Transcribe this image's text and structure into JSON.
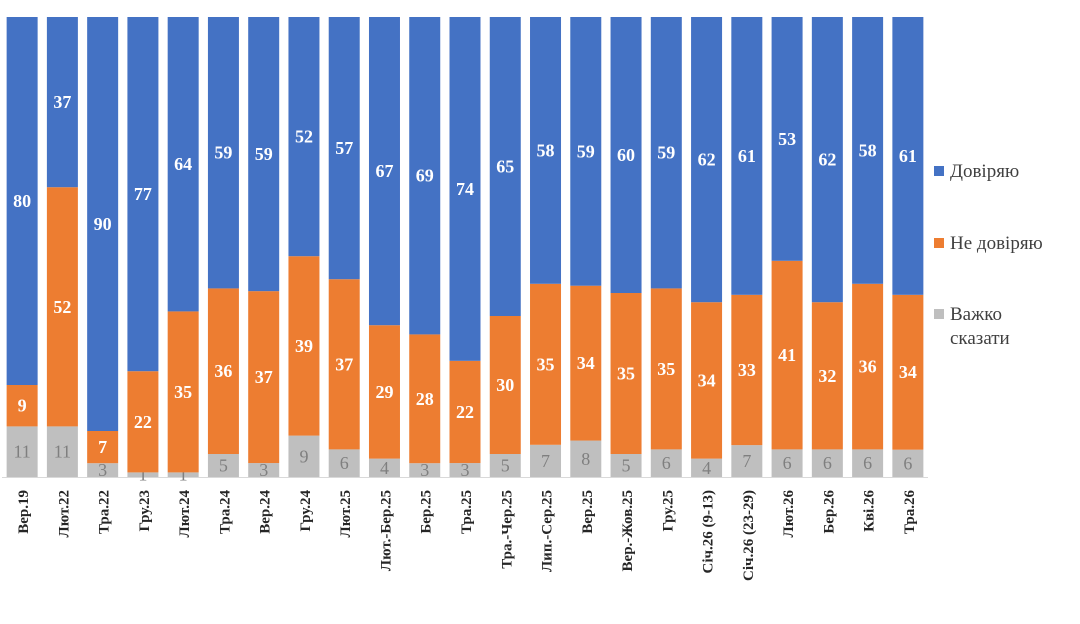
{
  "chart_data": {
    "type": "bar",
    "stacked": true,
    "normalized_percent": true,
    "categories": [
      "Вер.19",
      "Лют.22",
      "Тра.22",
      "Гру.23",
      "Лют.24",
      "Тра.24",
      "Вер.24",
      "Гру.24",
      "Лют.25",
      "Лют.-Бер.25",
      "Бер.25",
      "Тра.25",
      "Тра.-Чер.25",
      "Лип.-Сер.25",
      "Вер.25",
      "Вер.-Жов.25",
      "Гру.25",
      "Січ.26 (9-13)",
      "Січ.26 (23-29)",
      "Лют.26",
      "Бер.26",
      "Кві.26",
      "Тра.26"
    ],
    "series": [
      {
        "name": "Важко сказати",
        "color": "#bfbfbf",
        "values": [
          11,
          11,
          3,
          1,
          1,
          5,
          3,
          9,
          6,
          4,
          3,
          3,
          5,
          7,
          8,
          5,
          6,
          4,
          7,
          6,
          6,
          6,
          6
        ]
      },
      {
        "name": "Не довіряю",
        "color": "#ed7d31",
        "values": [
          9,
          52,
          7,
          22,
          35,
          36,
          37,
          39,
          37,
          29,
          28,
          22,
          30,
          35,
          34,
          35,
          35,
          34,
          33,
          41,
          32,
          36,
          34
        ]
      },
      {
        "name": "Довіряю",
        "color": "#4472c4",
        "values": [
          80,
          37,
          90,
          77,
          64,
          59,
          59,
          52,
          57,
          67,
          69,
          74,
          65,
          58,
          59,
          60,
          59,
          62,
          61,
          53,
          62,
          58,
          61
        ]
      }
    ],
    "legend": {
      "position": "right",
      "order": [
        "Довіряю",
        "Не довіряю",
        "Важко сказати"
      ]
    },
    "ylim": [
      0,
      100
    ],
    "grid": false
  }
}
